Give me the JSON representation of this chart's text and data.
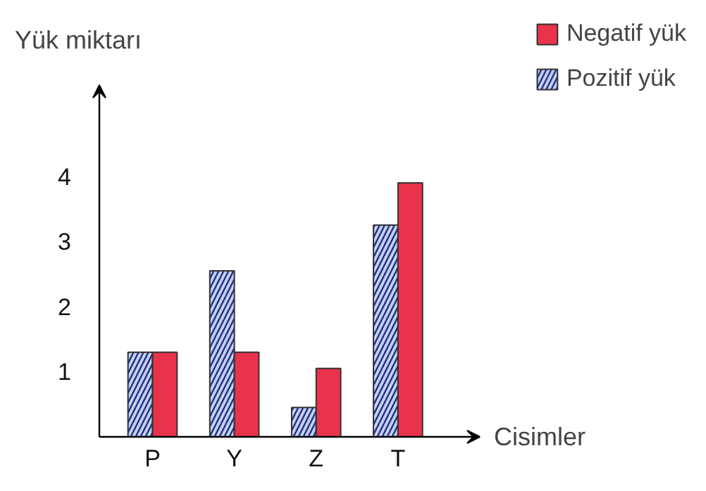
{
  "chart_data": {
    "type": "bar",
    "ylabel": "Yük miktarı",
    "xlabel": "Cisimler",
    "categories": [
      "P",
      "Y",
      "Z",
      "T"
    ],
    "series": [
      {
        "name": "Pozitif yük",
        "color": "#c5d0ee",
        "values": [
          1.3,
          2.55,
          0.45,
          3.25
        ]
      },
      {
        "name": "Negatif yük",
        "color": "#e8334a",
        "values": [
          1.3,
          1.3,
          1.05,
          3.9
        ]
      }
    ],
    "ylim": [
      0,
      5.4
    ],
    "yticks": [
      1,
      2,
      3,
      4
    ],
    "legend": "top right"
  }
}
